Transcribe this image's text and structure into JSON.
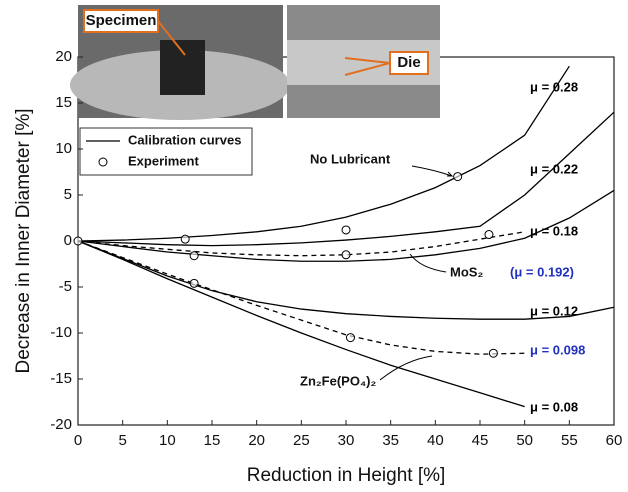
{
  "chart_data": {
    "type": "line",
    "x_label": "Reduction in Height [%]",
    "y_label": "Decrease in Inner Diameter [%]",
    "xlim": [
      0,
      60
    ],
    "xticks": [
      0,
      5,
      10,
      15,
      20,
      25,
      30,
      35,
      40,
      45,
      50,
      55,
      60
    ],
    "ylim": [
      -20,
      20
    ],
    "yticks": [
      -20,
      -15,
      -10,
      -5,
      0,
      5,
      10,
      15,
      20
    ],
    "x": [
      0,
      5,
      10,
      15,
      20,
      25,
      30,
      35,
      40,
      45,
      50,
      55,
      60
    ],
    "series": [
      {
        "name": "μ = 0.28",
        "color": "#000000",
        "label_color": "#000000",
        "dashed": false,
        "values": [
          0,
          0.1,
          0.3,
          0.6,
          1.0,
          1.6,
          2.6,
          4.0,
          5.8,
          8.2,
          11.5,
          19,
          null
        ]
      },
      {
        "name": "μ = 0.22",
        "color": "#000000",
        "label_color": "#000000",
        "dashed": false,
        "values": [
          0,
          -0.2,
          -0.4,
          -0.5,
          -0.4,
          -0.2,
          0.1,
          0.5,
          1.0,
          1.6,
          5,
          9.5,
          14
        ]
      },
      {
        "name": "(μ = 0.192)",
        "color": "#000000",
        "label_color": "#2030c0",
        "dashed": true,
        "values": [
          0,
          -0.5,
          -0.9,
          -1.3,
          -1.5,
          -1.6,
          -1.5,
          -1.2,
          -0.6,
          0.2,
          1.0,
          null,
          null
        ]
      },
      {
        "name": "μ = 0.18",
        "color": "#000000",
        "label_color": "#000000",
        "dashed": false,
        "values": [
          0,
          -0.6,
          -1.2,
          -1.6,
          -2.0,
          -2.2,
          -2.2,
          -2.0,
          -1.5,
          -0.8,
          0.3,
          2.5,
          5.5
        ]
      },
      {
        "name": "μ = 0.12",
        "color": "#000000",
        "label_color": "#000000",
        "dashed": false,
        "values": [
          0,
          -1.9,
          -3.8,
          -5.4,
          -6.6,
          -7.4,
          -7.9,
          -8.2,
          -8.4,
          -8.5,
          -8.5,
          -8.2,
          -7.2
        ]
      },
      {
        "name": "μ = 0.098",
        "color": "#000000",
        "label_color": "#2030c0",
        "dashed": true,
        "values": [
          0,
          -1.8,
          -3.6,
          -5.3,
          -7.0,
          -8.6,
          -10.2,
          -11.3,
          -12.0,
          -12.3,
          -12.2,
          null,
          null
        ]
      },
      {
        "name": "μ = 0.08",
        "color": "#000000",
        "label_color": "#000000",
        "dashed": false,
        "values": [
          0,
          -2.0,
          -4.1,
          -6.1,
          -8.1,
          -10,
          -11.8,
          -13.5,
          -15,
          -16.5,
          -18,
          null,
          null
        ]
      }
    ],
    "experiment": {
      "x": [
        0,
        12,
        13,
        13,
        30,
        30,
        30.5,
        42.5,
        46,
        46.5
      ],
      "values": [
        0,
        0.2,
        -1.6,
        -4.6,
        1.2,
        -1.5,
        -10.5,
        7,
        0.7,
        -12.2
      ]
    },
    "legend": [
      "Calibration curves",
      "Experiment"
    ],
    "annotations": [
      "No Lubricant",
      "MoS₂",
      "Zn₂Fe(PO₄)₂"
    ],
    "inset_labels": [
      "Specimen",
      "Die"
    ]
  }
}
